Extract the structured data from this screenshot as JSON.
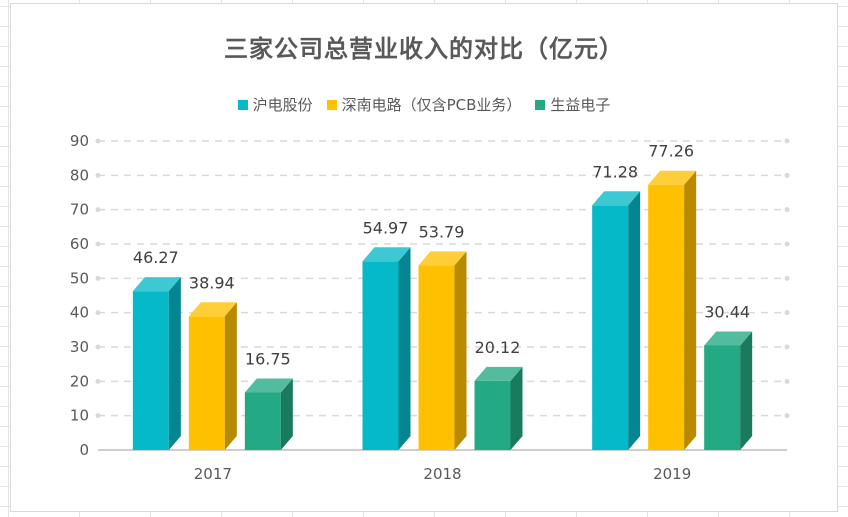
{
  "chart_data": {
    "type": "bar",
    "title": "三家公司总营业收入的对比（亿元）",
    "categories": [
      "2017",
      "2018",
      "2019"
    ],
    "series": [
      {
        "name": "沪电股份",
        "values": [
          46.27,
          54.97,
          71.28
        ],
        "color": "#06b9c8"
      },
      {
        "name": "深南电路（仅含PCB业务）",
        "values": [
          38.94,
          53.79,
          77.26
        ],
        "color": "#ffc000"
      },
      {
        "name": "生益电子",
        "values": [
          16.75,
          20.12,
          30.44
        ],
        "color": "#23a983"
      }
    ],
    "ylim": [
      0,
      90
    ],
    "yticks": [
      0,
      10,
      20,
      30,
      40,
      50,
      60,
      70,
      80,
      90
    ],
    "xlabel": "",
    "ylabel": "",
    "grid": true,
    "legend_position": "top",
    "style": "3d-column"
  }
}
